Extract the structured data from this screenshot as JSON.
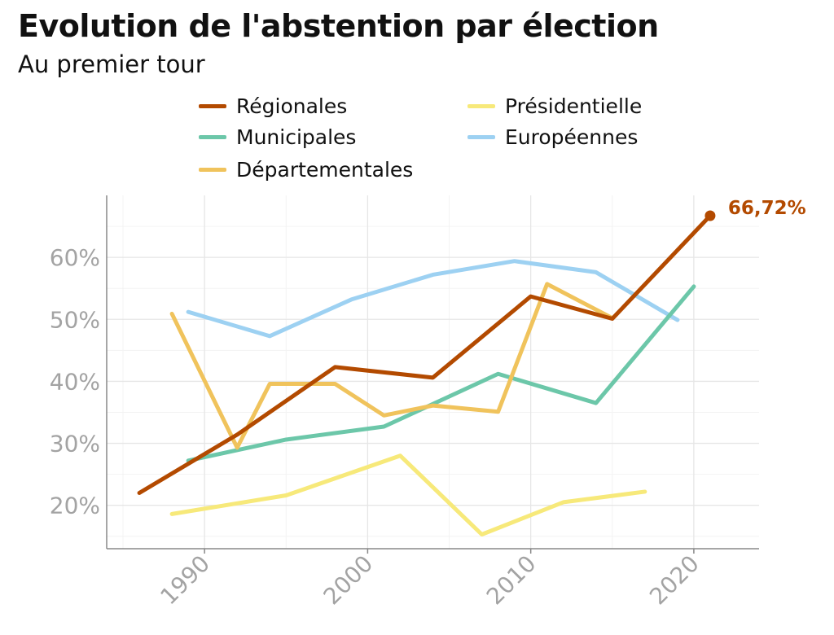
{
  "title": "Evolution de l'abstention par élection",
  "subtitle": "Au premier tour",
  "chart_data": {
    "type": "line",
    "title": "Evolution de l'abstention par élection",
    "subtitle": "Au premier tour",
    "xlabel": "",
    "ylabel": "",
    "xlim": [
      1984,
      2024
    ],
    "ylim": [
      13,
      70
    ],
    "x_ticks": [
      1990,
      2000,
      2010,
      2020
    ],
    "y_ticks": [
      20,
      30,
      40,
      50,
      60
    ],
    "y_tick_format": "%",
    "grid": true,
    "legend_position": "top",
    "series": [
      {
        "name": "Régionales",
        "color": "#b34a00",
        "x": [
          1986,
          1992,
          1998,
          2004,
          2010,
          2015,
          2021
        ],
        "y": [
          22.0,
          31.4,
          42.3,
          40.6,
          53.7,
          50.1,
          66.72
        ]
      },
      {
        "name": "Municipales",
        "color": "#6cc7a9",
        "x": [
          1989,
          1995,
          2001,
          2008,
          2014,
          2020
        ],
        "y": [
          27.2,
          30.6,
          32.7,
          41.2,
          36.5,
          55.3
        ]
      },
      {
        "name": "Départementales",
        "color": "#f0c35c",
        "x": [
          1988,
          1992,
          1994,
          1998,
          2001,
          2004,
          2008,
          2011,
          2015
        ],
        "y": [
          50.9,
          29.3,
          39.6,
          39.6,
          34.5,
          36.1,
          35.1,
          55.7,
          50.2
        ]
      },
      {
        "name": "Présidentielle",
        "color": "#f7e97a",
        "x": [
          1988,
          1995,
          2002,
          2007,
          2012,
          2017
        ],
        "y": [
          18.6,
          21.6,
          28.0,
          15.3,
          20.5,
          22.2
        ]
      },
      {
        "name": "Européennes",
        "color": "#9dd1f2",
        "x": [
          1989,
          1994,
          1999,
          2004,
          2009,
          2014,
          2019
        ],
        "y": [
          51.2,
          47.3,
          53.2,
          57.2,
          59.4,
          57.6,
          49.9
        ]
      }
    ],
    "annotations": [
      {
        "series": "Régionales",
        "x": 2021,
        "y": 66.72,
        "label": "66,72%"
      }
    ]
  }
}
